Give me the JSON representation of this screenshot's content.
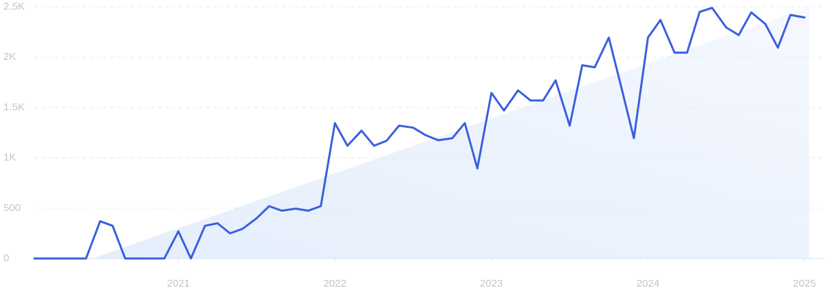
{
  "chart_data": {
    "type": "line",
    "x": [
      2020.08,
      2020.17,
      2020.25,
      2020.33,
      2020.41,
      2020.5,
      2020.58,
      2020.66,
      2020.75,
      2020.83,
      2020.91,
      2021.0,
      2021.08,
      2021.17,
      2021.25,
      2021.33,
      2021.41,
      2021.5,
      2021.58,
      2021.66,
      2021.75,
      2021.83,
      2021.91,
      2022.0,
      2022.08,
      2022.17,
      2022.25,
      2022.33,
      2022.41,
      2022.5,
      2022.58,
      2022.66,
      2022.75,
      2022.83,
      2022.91,
      2023.0,
      2023.08,
      2023.17,
      2023.25,
      2023.33,
      2023.41,
      2023.5,
      2023.58,
      2023.66,
      2023.75,
      2023.83,
      2023.91,
      2024.0,
      2024.08,
      2024.17,
      2024.25,
      2024.33,
      2024.41,
      2024.5,
      2024.58,
      2024.66,
      2024.75,
      2024.83,
      2024.91,
      2025.0
    ],
    "series": [
      {
        "color": "#3a5fdd",
        "values": [
          0,
          0,
          0,
          0,
          0,
          370,
          325,
          0,
          0,
          0,
          0,
          270,
          0,
          325,
          350,
          250,
          295,
          400,
          520,
          475,
          495,
          475,
          520,
          1345,
          1120,
          1270,
          1120,
          1170,
          1320,
          1300,
          1225,
          1175,
          1195,
          1345,
          895,
          1645,
          1470,
          1670,
          1570,
          1570,
          1770,
          1320,
          1920,
          1900,
          2195,
          1700,
          1195,
          2195,
          2370,
          2045,
          2045,
          2450,
          2490,
          2295,
          2220,
          2445,
          2330,
          2095,
          2420,
          2395
        ]
      }
    ],
    "trend": {
      "x": [
        2020.45,
        2025.03
      ],
      "values": [
        0,
        2500
      ],
      "color": "#dbe7fb"
    },
    "xlim": [
      2020.08,
      2025.03
    ],
    "xticks": [
      2021,
      2022,
      2023,
      2024,
      2025
    ],
    "ylim": [
      0,
      2500
    ],
    "yticks": [
      0,
      500,
      {
        "value": 1000,
        "label": "1K"
      },
      {
        "value": 1500,
        "label": "1.5K"
      },
      {
        "value": 2000,
        "label": "2K"
      },
      {
        "value": 2500,
        "label": "2.5K"
      }
    ],
    "grid": true
  }
}
